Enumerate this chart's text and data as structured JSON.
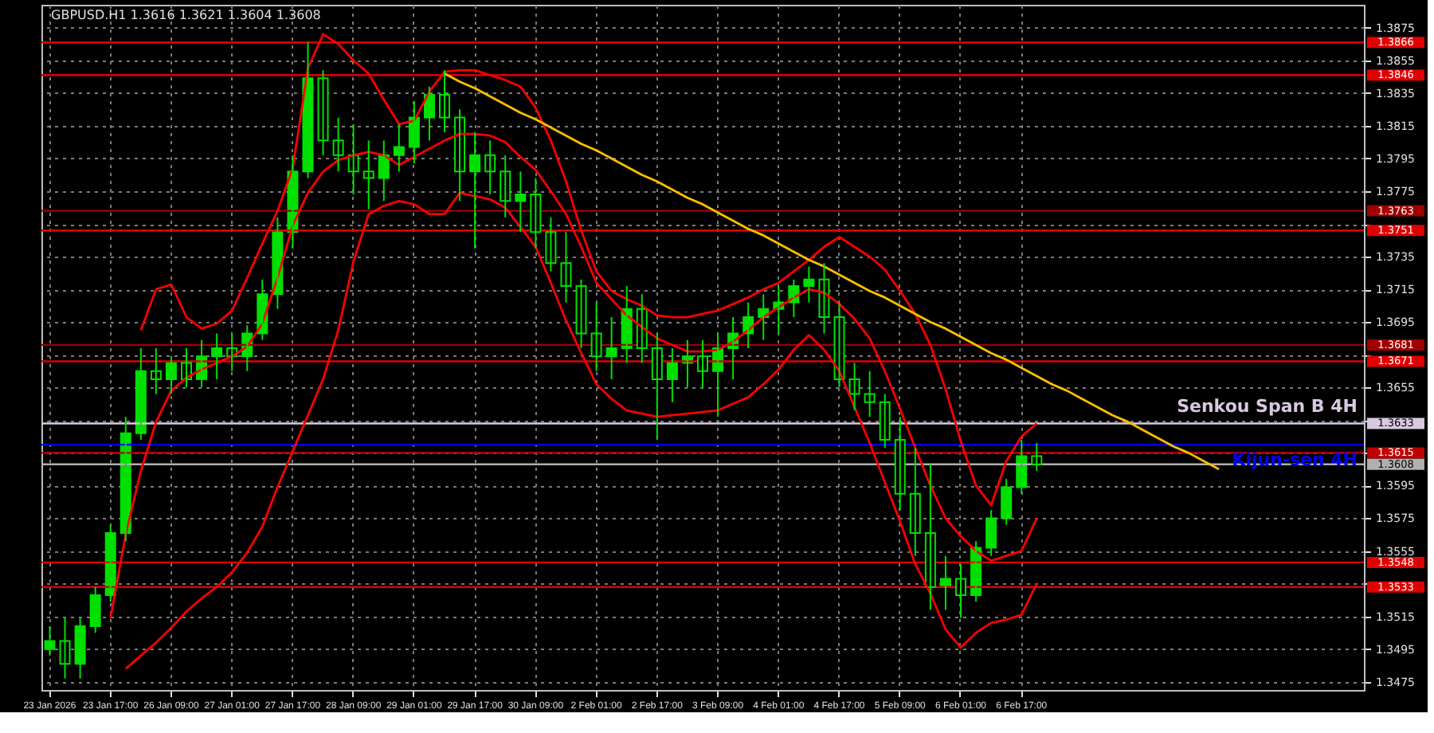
{
  "chart_data": {
    "type": "candlestick",
    "title": "GBPUSD.H1  1.3616 1.3621 1.3604 1.3608",
    "categories": [
      "23 Jan 2026",
      null,
      null,
      null,
      "23 Jan 17:00",
      null,
      null,
      null,
      "26 Jan 09:00",
      null,
      null,
      null,
      "27 Jan 01:00",
      null,
      null,
      null,
      "27 Jan 17:00",
      null,
      null,
      null,
      "28 Jan 09:00",
      null,
      null,
      null,
      "29 Jan 01:00",
      null,
      null,
      null,
      "29 Jan 17:00",
      null,
      null,
      null,
      "30 Jan 09:00",
      null,
      null,
      null,
      "2 Feb 01:00",
      null,
      null,
      null,
      "2 Feb 17:00",
      null,
      null,
      null,
      "3 Feb 09:00",
      null,
      null,
      null,
      "4 Feb 01:00",
      null,
      null,
      null,
      "4 Feb 17:00",
      null,
      null,
      null,
      "5 Feb 09:00",
      null,
      null,
      null,
      "6 Feb 01:00",
      null,
      null,
      null,
      "6 Feb 17:00",
      null,
      null,
      null,
      null,
      null,
      null,
      null,
      null,
      null,
      null,
      null,
      null,
      null,
      null,
      null,
      null,
      null,
      null,
      null,
      null,
      null,
      null
    ],
    "ylim": [
      1.347,
      1.3889
    ],
    "yticks": [
      1.3475,
      1.3495,
      1.3515,
      {
        "value": 1.3535,
        "label": null
      },
      1.3555,
      1.3575,
      1.3595,
      {
        "value": 1.3615,
        "label": null
      },
      {
        "value": 1.3635,
        "label": null
      },
      1.3655,
      {
        "value": 1.3675,
        "label": null
      },
      1.3695,
      1.3715,
      1.3735,
      {
        "value": 1.3755,
        "label": null
      },
      1.3775,
      1.3795,
      1.3815,
      1.3835,
      1.3855,
      1.3875
    ],
    "grid": true,
    "series": [
      {
        "color": "#00e000",
        "ohlc": [
          [
            1.3495,
            1.3509,
            1.3491,
            1.35
          ],
          [
            1.35,
            1.3514,
            1.3477,
            1.3486
          ],
          [
            1.3486,
            1.3514,
            1.3477,
            1.3509
          ],
          [
            1.3509,
            1.3533,
            1.3505,
            1.3528
          ],
          [
            1.3528,
            1.3571,
            1.3524,
            1.3566
          ],
          [
            1.3566,
            1.3637,
            1.3561,
            1.3627
          ],
          [
            1.3627,
            1.3679,
            1.3623,
            1.3665
          ],
          [
            1.3665,
            1.3679,
            1.3651,
            1.366
          ],
          [
            1.366,
            1.3674,
            1.3651,
            1.367
          ],
          [
            1.367,
            1.3679,
            1.3655,
            1.366
          ],
          [
            1.366,
            1.3684,
            1.3655,
            1.3674
          ],
          [
            1.3674,
            1.3688,
            1.366,
            1.3679
          ],
          [
            1.3679,
            1.3688,
            1.3665,
            1.3674
          ],
          [
            1.3674,
            1.3693,
            1.3665,
            1.3688
          ],
          [
            1.3688,
            1.3721,
            1.3684,
            1.3712
          ],
          [
            1.3712,
            1.3759,
            1.3703,
            1.375
          ],
          [
            1.375,
            1.3797,
            1.374,
            1.3787
          ],
          [
            1.3787,
            1.3866,
            1.3783,
            1.3844
          ],
          [
            1.3844,
            1.3849,
            1.3797,
            1.3806
          ],
          [
            1.3806,
            1.382,
            1.3787,
            1.3797
          ],
          [
            1.3797,
            1.3816,
            1.3773,
            1.3787
          ],
          [
            1.3787,
            1.3806,
            1.3764,
            1.3783
          ],
          [
            1.3783,
            1.3806,
            1.3769,
            1.3797
          ],
          [
            1.3797,
            1.3816,
            1.3787,
            1.3802
          ],
          [
            1.3802,
            1.383,
            1.3792,
            1.382
          ],
          [
            1.382,
            1.3839,
            1.3806,
            1.3834
          ],
          [
            1.3834,
            1.3849,
            1.3811,
            1.382
          ],
          [
            1.382,
            1.3825,
            1.3769,
            1.3787
          ],
          [
            1.3787,
            1.3811,
            1.374,
            1.3797
          ],
          [
            1.3797,
            1.3806,
            1.3773,
            1.3787
          ],
          [
            1.3787,
            1.3797,
            1.3759,
            1.3769
          ],
          [
            1.3769,
            1.3787,
            1.375,
            1.3773
          ],
          [
            1.3773,
            1.3783,
            1.374,
            1.375
          ],
          [
            1.375,
            1.3759,
            1.3726,
            1.3731
          ],
          [
            1.3731,
            1.375,
            1.3707,
            1.3717
          ],
          [
            1.3717,
            1.3721,
            1.3679,
            1.3688
          ],
          [
            1.3688,
            1.3707,
            1.3665,
            1.3674
          ],
          [
            1.3674,
            1.3698,
            1.366,
            1.3679
          ],
          [
            1.3679,
            1.3717,
            1.367,
            1.3703
          ],
          [
            1.3703,
            1.3712,
            1.367,
            1.3679
          ],
          [
            1.3679,
            1.3688,
            1.3623,
            1.366
          ],
          [
            1.366,
            1.3679,
            1.3646,
            1.367
          ],
          [
            1.367,
            1.3684,
            1.3655,
            1.3674
          ],
          [
            1.3674,
            1.3684,
            1.3655,
            1.3665
          ],
          [
            1.3665,
            1.3688,
            1.3637,
            1.3679
          ],
          [
            1.3679,
            1.3698,
            1.366,
            1.3688
          ],
          [
            1.3688,
            1.3707,
            1.3679,
            1.3698
          ],
          [
            1.3698,
            1.3712,
            1.3684,
            1.3703
          ],
          [
            1.3703,
            1.3717,
            1.3688,
            1.3707
          ],
          [
            1.3707,
            1.3721,
            1.3698,
            1.3717
          ],
          [
            1.3717,
            1.3729,
            1.3707,
            1.3721
          ],
          [
            1.3721,
            1.3731,
            1.3688,
            1.3698
          ],
          [
            1.3698,
            1.3707,
            1.3655,
            1.366
          ],
          [
            1.366,
            1.367,
            1.3641,
            1.3651
          ],
          [
            1.3651,
            1.3665,
            1.3637,
            1.3646
          ],
          [
            1.3646,
            1.3651,
            1.3618,
            1.3623
          ],
          [
            1.3623,
            1.3637,
            1.358,
            1.359
          ],
          [
            1.359,
            1.3618,
            1.3552,
            1.3566
          ],
          [
            1.3566,
            1.3608,
            1.3519,
            1.3533
          ],
          [
            1.3533,
            1.3552,
            1.3519,
            1.3538
          ],
          [
            1.3538,
            1.3547,
            1.3514,
            1.3528
          ],
          [
            1.3528,
            1.3561,
            1.3524,
            1.3557
          ],
          [
            1.3557,
            1.358,
            1.3552,
            1.3575
          ],
          [
            1.3575,
            1.3599,
            1.3571,
            1.3594
          ],
          [
            1.3594,
            1.3623,
            1.359,
            1.3613
          ],
          [
            1.3613,
            1.3621,
            1.3604,
            1.3608
          ],
          null,
          null,
          null,
          null,
          null,
          null,
          null,
          null,
          null,
          null,
          null,
          null,
          null,
          null,
          null,
          null,
          null,
          null,
          null,
          null,
          null
        ]
      },
      {
        "type": "line",
        "color": "#ff0000",
        "values": [
          null,
          null,
          null,
          null,
          null,
          null,
          1.369,
          1.3715,
          1.3718,
          1.3698,
          1.3691,
          1.3694,
          1.3702,
          1.3722,
          1.3743,
          1.3763,
          1.3789,
          1.385,
          1.3871,
          1.3865,
          1.3855,
          1.3847,
          1.3831,
          1.3816,
          1.3818,
          1.3836,
          1.3848,
          1.3849,
          1.3849,
          1.3846,
          1.3843,
          1.3839,
          1.3826,
          1.3806,
          1.3781,
          1.3751,
          1.3726,
          1.3714,
          1.3709,
          1.3705,
          1.3699,
          1.3698,
          1.3698,
          1.37,
          1.3702,
          1.3706,
          1.371,
          1.3715,
          1.3719,
          1.3726,
          1.3733,
          1.3741,
          1.3747,
          1.3741,
          1.3735,
          1.3727,
          1.3714,
          1.37,
          1.3681,
          1.3654,
          1.3622,
          1.3595,
          1.3583,
          1.361,
          1.3625,
          1.3633,
          null,
          null,
          null,
          null,
          null,
          null,
          null,
          null,
          null,
          null,
          null,
          null,
          null,
          null,
          null,
          null,
          null,
          null,
          null,
          null,
          null
        ]
      },
      {
        "type": "line",
        "color": "#ff0000",
        "values": [
          null,
          null,
          null,
          null,
          1.3514,
          1.3565,
          1.3604,
          1.3634,
          1.3653,
          1.3661,
          1.3666,
          1.367,
          1.3674,
          1.368,
          1.3694,
          1.3722,
          1.3754,
          1.3774,
          1.3787,
          1.3794,
          1.3797,
          1.3799,
          1.3797,
          1.3791,
          1.3796,
          1.3801,
          1.3806,
          1.381,
          1.381,
          1.3809,
          1.3805,
          1.3796,
          1.3788,
          1.3775,
          1.3761,
          1.3741,
          1.3719,
          1.3709,
          1.3699,
          1.3692,
          1.3685,
          1.3681,
          1.3677,
          1.3677,
          1.3678,
          1.3683,
          1.369,
          1.3698,
          1.3704,
          1.371,
          1.3715,
          1.3713,
          1.3706,
          1.3697,
          1.3685,
          1.3665,
          1.3642,
          1.3618,
          1.3595,
          1.3575,
          1.3564,
          1.3555,
          1.3549,
          1.3552,
          1.3555,
          1.3575,
          null,
          null,
          null,
          null,
          null,
          null,
          null,
          null,
          null,
          null,
          null,
          null,
          null,
          null,
          null,
          null,
          null,
          null,
          null,
          null,
          null
        ]
      },
      {
        "type": "line",
        "color": "#ff0000",
        "values": [
          null,
          null,
          null,
          null,
          null,
          1.3483,
          1.3491,
          1.3499,
          1.3508,
          1.3518,
          1.3526,
          1.3533,
          1.3542,
          1.3554,
          1.357,
          1.3594,
          1.3616,
          1.3638,
          1.366,
          1.369,
          1.3732,
          1.3761,
          1.3766,
          1.3769,
          1.3767,
          1.3761,
          1.3761,
          1.3774,
          1.3772,
          1.377,
          1.3765,
          1.3753,
          1.3741,
          1.3719,
          1.3696,
          1.3676,
          1.3657,
          1.3648,
          1.3641,
          1.3639,
          1.3637,
          1.3638,
          1.3639,
          1.364,
          1.3641,
          1.3645,
          1.3649,
          1.3657,
          1.3666,
          1.3678,
          1.3687,
          1.3678,
          1.3665,
          1.3643,
          1.3621,
          1.3597,
          1.3573,
          1.3547,
          1.3529,
          1.3507,
          1.3496,
          1.3505,
          1.3511,
          1.3513,
          1.3516,
          1.3535,
          null,
          null,
          null,
          null,
          null,
          null,
          null,
          null,
          null,
          null,
          null,
          null,
          null,
          null,
          null,
          null,
          null,
          null,
          null,
          null,
          null
        ]
      },
      {
        "type": "line",
        "color": "#ffc000",
        "values": [
          null,
          null,
          null,
          null,
          null,
          null,
          null,
          null,
          null,
          null,
          null,
          null,
          null,
          null,
          null,
          null,
          null,
          null,
          null,
          null,
          null,
          null,
          null,
          null,
          null,
          null,
          1.3847,
          1.3842,
          1.3838,
          1.3833,
          1.3828,
          1.3823,
          1.3819,
          1.3814,
          1.3809,
          1.3804,
          1.38,
          1.3795,
          1.379,
          1.3785,
          1.3781,
          1.3776,
          1.3771,
          1.3767,
          1.3762,
          1.3757,
          1.3752,
          1.3748,
          1.3743,
          1.3738,
          1.3733,
          1.3729,
          1.3724,
          1.3719,
          1.3714,
          1.371,
          1.3705,
          1.37,
          1.3695,
          1.3691,
          1.3686,
          1.3681,
          1.3676,
          1.3672,
          1.3667,
          1.3662,
          1.3657,
          1.3653,
          1.3648,
          1.3643,
          1.3638,
          1.3634,
          1.3629,
          1.3624,
          1.3619,
          1.3615,
          1.361,
          1.3605,
          null,
          null,
          null,
          null,
          null,
          null,
          null,
          null,
          null
        ]
      }
    ],
    "ref_lines": [
      {
        "axis": "y",
        "value": 1.3866,
        "label": "1.3866",
        "color": "#e00000"
      },
      {
        "axis": "y",
        "value": 1.3846,
        "label": "1.3846",
        "color": "#e00000"
      },
      {
        "axis": "y",
        "value": 1.3763,
        "label": "1.3763",
        "color": "#a00000"
      },
      {
        "axis": "y",
        "value": 1.3751,
        "label": "1.3751",
        "color": "#e00000"
      },
      {
        "axis": "y",
        "value": 1.3681,
        "label": "1.3681",
        "color": "#a00000"
      },
      {
        "axis": "y",
        "value": 1.3671,
        "label": "1.3671",
        "color": "#e00000"
      },
      {
        "axis": "y",
        "value": 1.3633,
        "label": "1.3633",
        "color": "#d8c8e0"
      },
      {
        "axis": "y",
        "value": 1.362,
        "color": "#0000ff"
      },
      {
        "axis": "y",
        "value": 1.3615,
        "label": "1.3615",
        "color": "#c00000"
      },
      {
        "axis": "y",
        "value": 1.3608,
        "label": "1.3608",
        "color": "#b0b0b0"
      },
      {
        "axis": "y",
        "value": 1.3548,
        "label": "1.3548",
        "color": "#e00000"
      },
      {
        "axis": "y",
        "value": 1.3533,
        "label": "1.3533",
        "color": "#e00000"
      }
    ],
    "annotations": [
      {
        "text": "Senkou Span B 4H",
        "y": 1.3633
      },
      {
        "text": "Kijun-sen 4H",
        "y": 1.362
      }
    ]
  }
}
